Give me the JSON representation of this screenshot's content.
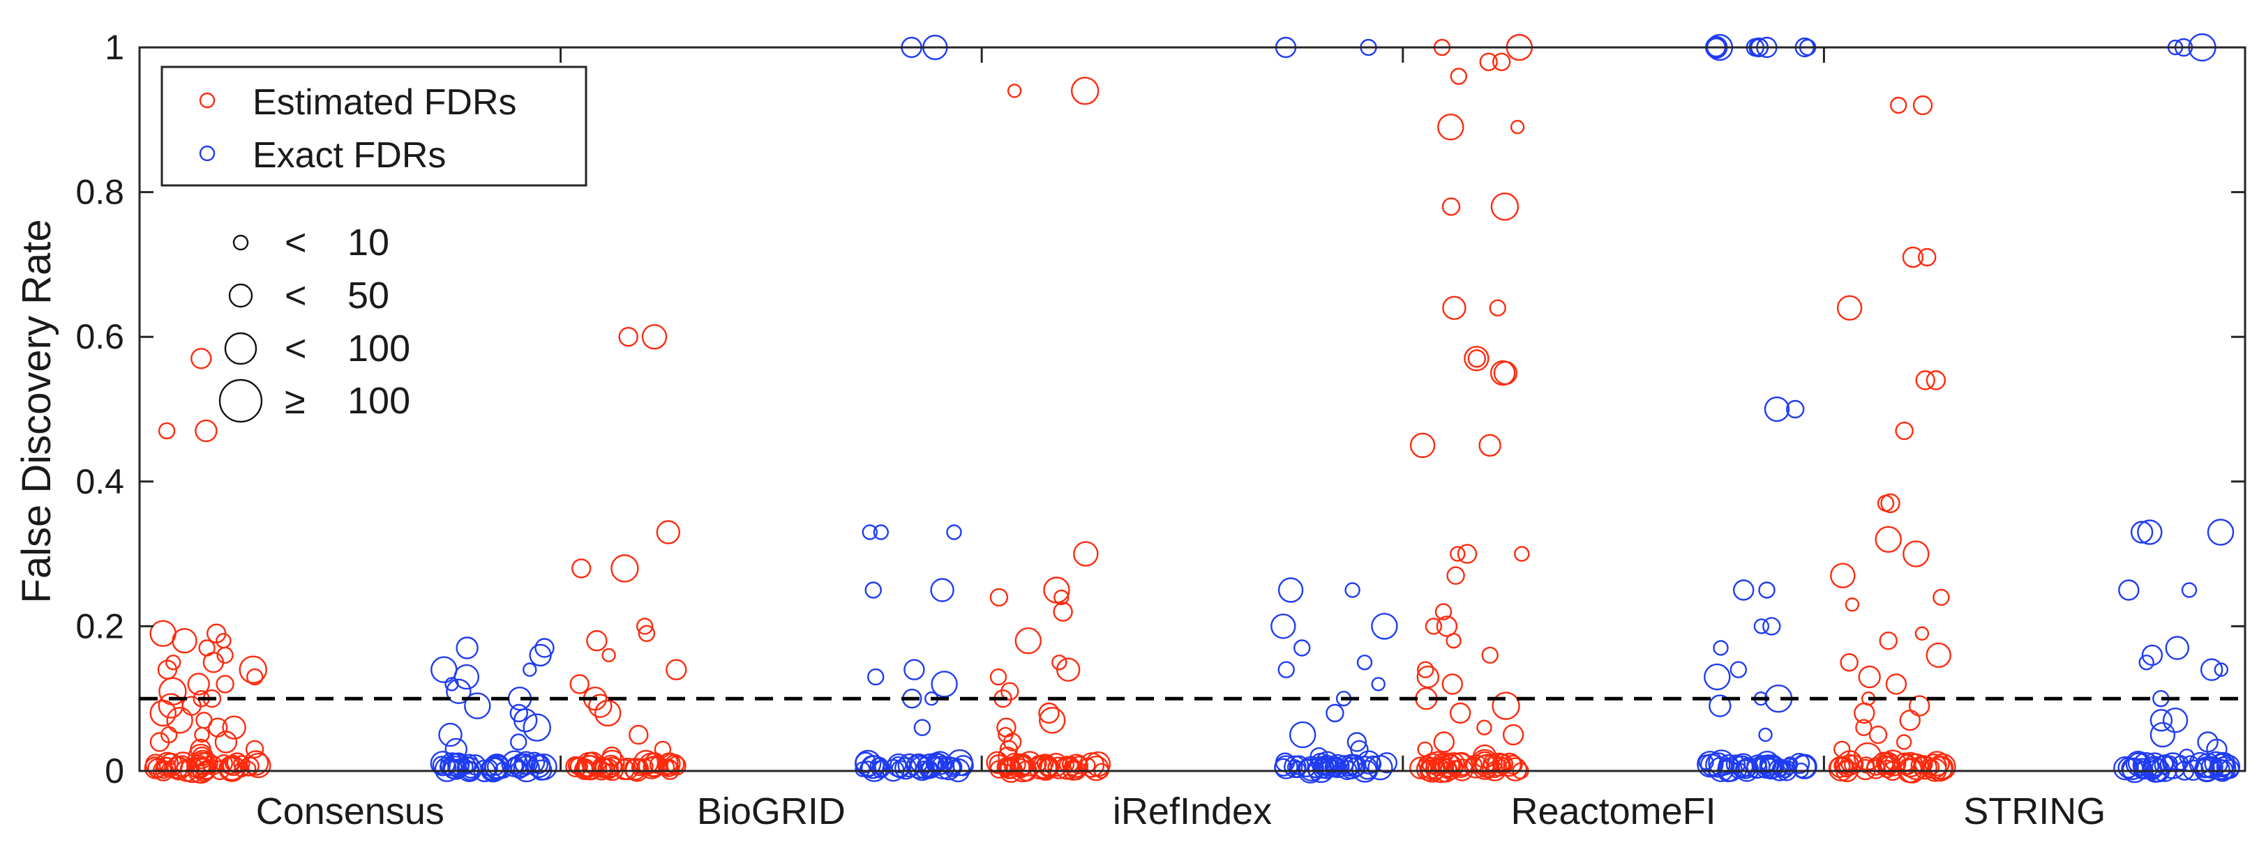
{
  "chart_data": {
    "type": "scatter",
    "title": "",
    "xlabel": "",
    "ylabel": "False Discovery Rate",
    "ylim": [
      0,
      1
    ],
    "yticks": [
      "0",
      "0.2",
      "0.4",
      "0.6",
      "0.8",
      "1"
    ],
    "categories": [
      "Consensus",
      "BioGRID",
      "iRefIndex",
      "ReactomeFI",
      "STRING"
    ],
    "threshold": 0.1,
    "grid": false,
    "legend_position": "top-left",
    "legend": [
      {
        "name": "Estimated FDRs",
        "color": "#ff2a0d"
      },
      {
        "name": "Exact FDRs",
        "color": "#1f3cf2"
      }
    ],
    "size_legend": [
      {
        "symbol": "<",
        "value": "10"
      },
      {
        "symbol": "<",
        "value": "50"
      },
      {
        "symbol": "<",
        "value": "100"
      },
      {
        "symbol": "≥",
        "value": "100"
      }
    ],
    "series": [
      {
        "name": "Estimated FDRs",
        "color": "#ff2a0d",
        "groups": {
          "Consensus": [
            0.47,
            0.47,
            0.57,
            0.19,
            0.19,
            0.18,
            0.18,
            0.17,
            0.16,
            0.15,
            0.15,
            0.14,
            0.14,
            0.13,
            0.12,
            0.12,
            0.11,
            0.1,
            0.1,
            0.09,
            0.09,
            0.08,
            0.07,
            0.07,
            0.06,
            0.06,
            0.05,
            0.05,
            0.04,
            0.04,
            0.03,
            0.03,
            0.02,
            0.02,
            0.01,
            0.01
          ],
          "BioGRID": [
            0.6,
            0.6,
            0.33,
            0.28,
            0.28,
            0.2,
            0.19,
            0.18,
            0.16,
            0.14,
            0.12,
            0.1,
            0.09,
            0.08,
            0.05,
            0.03,
            0.02,
            0.01
          ],
          "iRefIndex": [
            0.94,
            0.94,
            0.3,
            0.25,
            0.24,
            0.24,
            0.22,
            0.18,
            0.15,
            0.14,
            0.13,
            0.11,
            0.1,
            0.08,
            0.07,
            0.06,
            0.05,
            0.04,
            0.03,
            0.02,
            0.01
          ],
          "ReactomeFI": [
            1.0,
            1.0,
            0.98,
            0.98,
            0.96,
            0.89,
            0.89,
            0.78,
            0.78,
            0.64,
            0.64,
            0.57,
            0.57,
            0.55,
            0.55,
            0.45,
            0.45,
            0.3,
            0.3,
            0.3,
            0.27,
            0.22,
            0.2,
            0.2,
            0.18,
            0.16,
            0.14,
            0.13,
            0.12,
            0.1,
            0.09,
            0.08,
            0.06,
            0.05,
            0.04,
            0.03,
            0.02,
            0.01
          ],
          "STRING": [
            0.92,
            0.92,
            0.71,
            0.71,
            0.64,
            0.54,
            0.54,
            0.47,
            0.37,
            0.37,
            0.32,
            0.3,
            0.27,
            0.24,
            0.23,
            0.19,
            0.18,
            0.16,
            0.15,
            0.13,
            0.12,
            0.1,
            0.09,
            0.08,
            0.07,
            0.06,
            0.05,
            0.04,
            0.03,
            0.02,
            0.01
          ]
        }
      },
      {
        "name": "Exact FDRs",
        "color": "#1f3cf2",
        "groups": {
          "Consensus": [
            0.17,
            0.17,
            0.16,
            0.14,
            0.14,
            0.13,
            0.12,
            0.11,
            0.1,
            0.09,
            0.08,
            0.07,
            0.06,
            0.05,
            0.04,
            0.03
          ],
          "BioGRID": [
            1.0,
            1.0,
            0.33,
            0.33,
            0.33,
            0.25,
            0.25,
            0.14,
            0.13,
            0.12,
            0.1,
            0.1,
            0.06
          ],
          "iRefIndex": [
            1.0,
            1.0,
            0.25,
            0.25,
            0.2,
            0.2,
            0.17,
            0.15,
            0.14,
            0.12,
            0.1,
            0.08,
            0.05,
            0.04,
            0.03,
            0.02
          ],
          "ReactomeFI": [
            1.0,
            1.0,
            1.0,
            1.0,
            1.0,
            1.0,
            1.0,
            1.0,
            1.0,
            0.5,
            0.5,
            0.25,
            0.25,
            0.2,
            0.2,
            0.17,
            0.14,
            0.13,
            0.1,
            0.1,
            0.09,
            0.05
          ],
          "STRING": [
            1.0,
            1.0,
            1.0,
            0.33,
            0.33,
            0.33,
            0.25,
            0.25,
            0.17,
            0.16,
            0.15,
            0.14,
            0.14,
            0.1,
            0.07,
            0.07,
            0.05,
            0.04,
            0.03,
            0.02
          ]
        }
      }
    ]
  }
}
